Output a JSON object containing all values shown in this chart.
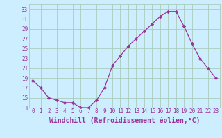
{
  "x": [
    0,
    1,
    2,
    3,
    4,
    5,
    6,
    7,
    8,
    9,
    10,
    11,
    12,
    13,
    14,
    15,
    16,
    17,
    18,
    19,
    20,
    21,
    22,
    23
  ],
  "y": [
    18.5,
    17.0,
    15.0,
    14.5,
    14.0,
    14.0,
    13.0,
    13.0,
    14.5,
    17.0,
    21.5,
    23.5,
    25.5,
    27.0,
    28.5,
    30.0,
    31.5,
    32.5,
    32.5,
    29.5,
    26.0,
    23.0,
    21.0,
    19.0
  ],
  "line_color": "#993399",
  "marker": "D",
  "marker_size": 2.2,
  "bg_color": "#cceeff",
  "grid_color": "#aaccbb",
  "xlabel": "Windchill (Refroidissement éolien,°C)",
  "xlabel_color": "#993399",
  "tick_color": "#993399",
  "ylim": [
    13,
    34
  ],
  "yticks": [
    13,
    15,
    17,
    19,
    21,
    23,
    25,
    27,
    29,
    31,
    33
  ],
  "xticks": [
    0,
    1,
    2,
    3,
    4,
    5,
    6,
    7,
    8,
    9,
    10,
    11,
    12,
    13,
    14,
    15,
    16,
    17,
    18,
    19,
    20,
    21,
    22,
    23
  ],
  "tick_fontsize": 5.5,
  "xlabel_fontsize": 7.0
}
